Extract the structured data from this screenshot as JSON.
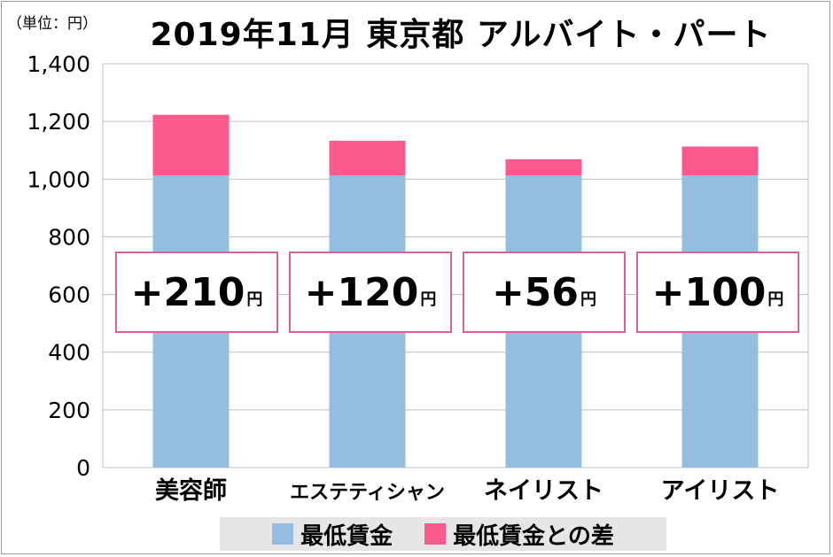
{
  "unit_label": "（単位：円）",
  "chart_data": {
    "type": "bar",
    "stacked": true,
    "title": "2019年11月 東京都 アルバイト・パート",
    "categories": [
      "美容師",
      "エステティシャン",
      "ネイリスト",
      "アイリスト"
    ],
    "series": [
      {
        "name": "最低賃金",
        "color": "#95bde0",
        "values": [
          1013,
          1013,
          1013,
          1013
        ]
      },
      {
        "name": "最低賃金との差",
        "color": "#fa5a8c",
        "values": [
          210,
          120,
          56,
          100
        ]
      }
    ],
    "yticks": [
      "0",
      "200",
      "400",
      "600",
      "800",
      "1,000",
      "1,200",
      "1,400"
    ],
    "ylim": [
      0,
      1400
    ],
    "grid": true,
    "legend_position": "bottom"
  },
  "diff_labels": [
    {
      "value": "+210",
      "unit": "円"
    },
    {
      "value": "+120",
      "unit": "円"
    },
    {
      "value": "+56",
      "unit": "円"
    },
    {
      "value": "+100",
      "unit": "円"
    }
  ],
  "legend": [
    {
      "label": "最低賃金",
      "color": "#95bde0"
    },
    {
      "label": "最低賃金との差",
      "color": "#fa5a8c"
    }
  ],
  "colors": {
    "grid": "#bfbfbf",
    "box_border": "#d6649b"
  }
}
